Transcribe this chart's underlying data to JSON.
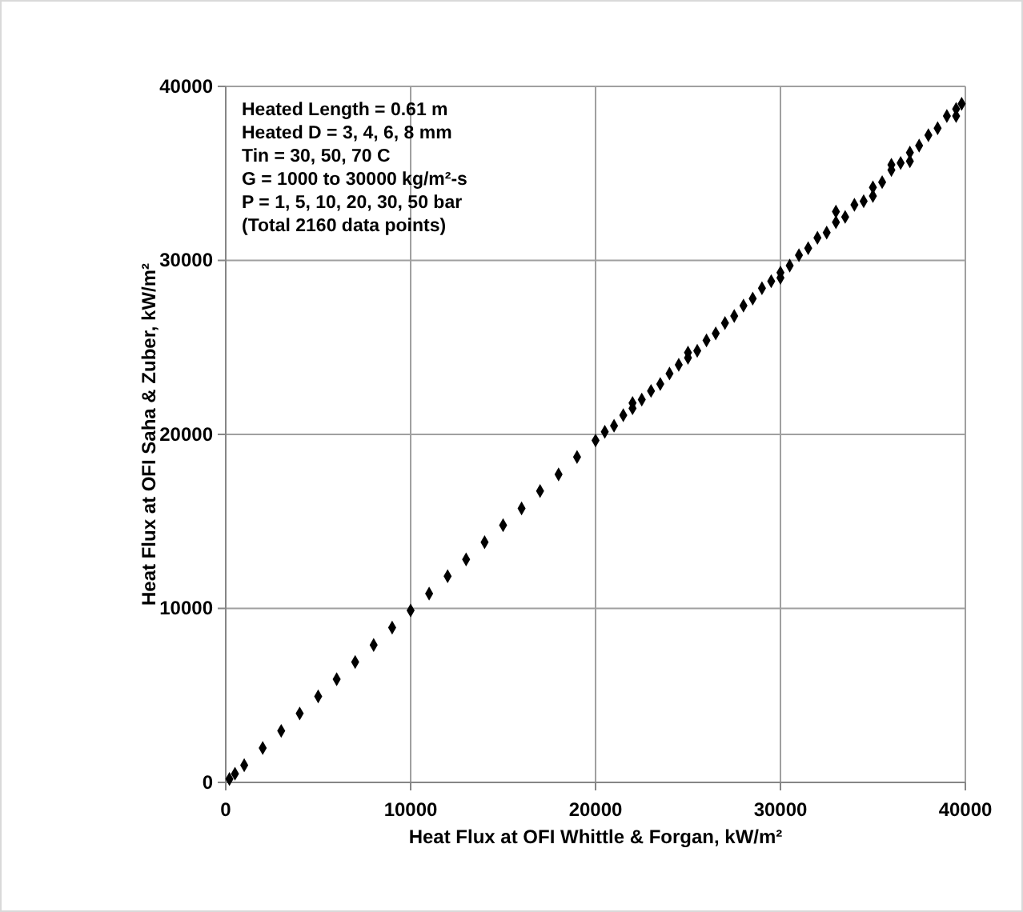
{
  "chart_data": {
    "type": "scatter",
    "xlabel": "Heat Flux at OFI Whittle & Forgan, kW/m²",
    "ylabel": "Heat Flux at OFI Saha & Zuber, kW/m²",
    "annotations": [
      "Heated Length = 0.61 m",
      "Heated D = 3, 4, 6, 8 mm",
      "Tin = 30, 50, 70 C",
      "G = 1000 to 30000 kg/m²-s",
      "P = 1, 5, 10, 20, 30, 50 bar",
      "(Total 2160 data points)"
    ],
    "x": [
      200,
      500,
      1000,
      2000,
      3000,
      4000,
      5000,
      6000,
      7000,
      8000,
      9000,
      10000,
      11000,
      12000,
      13000,
      14000,
      15000,
      16000,
      17000,
      18000,
      19000,
      20000,
      20500,
      21000,
      21500,
      22000,
      22500,
      23000,
      23500,
      24000,
      24500,
      25000,
      25500,
      26000,
      26500,
      27000,
      27500,
      28000,
      28500,
      29000,
      29500,
      30000,
      30500,
      31000,
      31500,
      32000,
      32500,
      33000,
      33500,
      34000,
      34500,
      35000,
      35500,
      36000,
      36500,
      37000,
      37500,
      38000,
      38500,
      39000,
      39500,
      39800,
      25000,
      30000,
      35000,
      37000,
      39500,
      22000,
      33000,
      36000
    ],
    "values": [
      200,
      500,
      990,
      1980,
      2960,
      3960,
      4940,
      5930,
      6920,
      7900,
      8900,
      9880,
      10850,
      11850,
      12820,
      13800,
      14780,
      15750,
      16750,
      17700,
      18700,
      19650,
      20150,
      20500,
      21100,
      21500,
      22000,
      22500,
      22900,
      23500,
      24000,
      24400,
      24800,
      25400,
      25800,
      26400,
      26800,
      27400,
      27800,
      28400,
      28800,
      29300,
      29700,
      30300,
      30700,
      31300,
      31600,
      32200,
      32500,
      33200,
      33400,
      34200,
      34500,
      35200,
      35600,
      36200,
      36600,
      37200,
      37600,
      38300,
      38700,
      39000,
      24700,
      29000,
      33700,
      35700,
      38300,
      21800,
      32800,
      35500
    ],
    "color": "#000000",
    "marker": "diamond",
    "xlim": [
      0,
      40000
    ],
    "ylim": [
      0,
      40000
    ],
    "xticks": [
      0,
      10000,
      20000,
      30000,
      40000
    ],
    "yticks": [
      0,
      10000,
      20000,
      30000,
      40000
    ],
    "grid": true
  }
}
